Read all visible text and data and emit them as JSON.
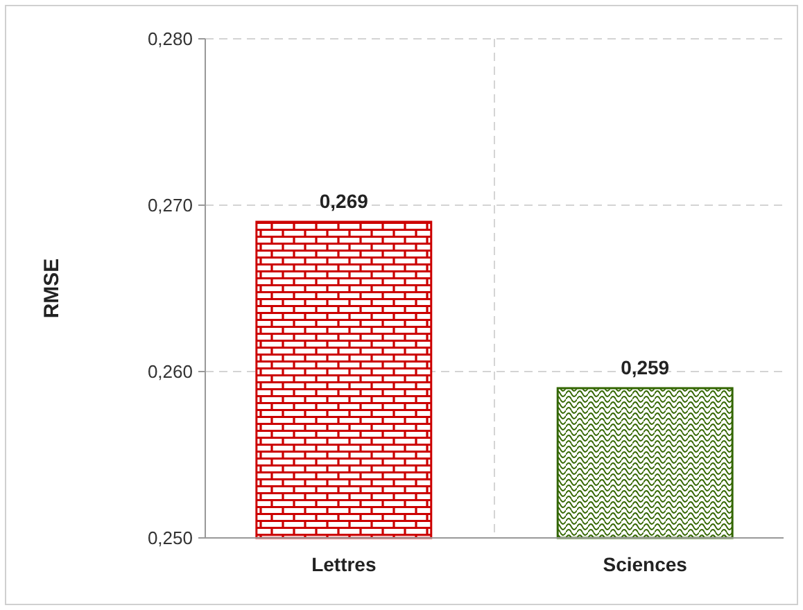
{
  "chart_data": {
    "type": "bar",
    "ylabel": "RMSE",
    "categories": [
      "Lettres",
      "Sciences"
    ],
    "values": [
      0.269,
      0.259
    ],
    "colors": [
      "#cc0000",
      "#336600"
    ],
    "value_labels": [
      "0,269",
      "0,259"
    ],
    "ylim": [
      0.25,
      0.28
    ],
    "yticks": [
      {
        "value": 0.25,
        "label": "0,250"
      },
      {
        "value": 0.26,
        "label": "0,260"
      },
      {
        "value": 0.27,
        "label": "0,270"
      },
      {
        "value": 0.28,
        "label": "0,280"
      }
    ],
    "grid": true
  }
}
